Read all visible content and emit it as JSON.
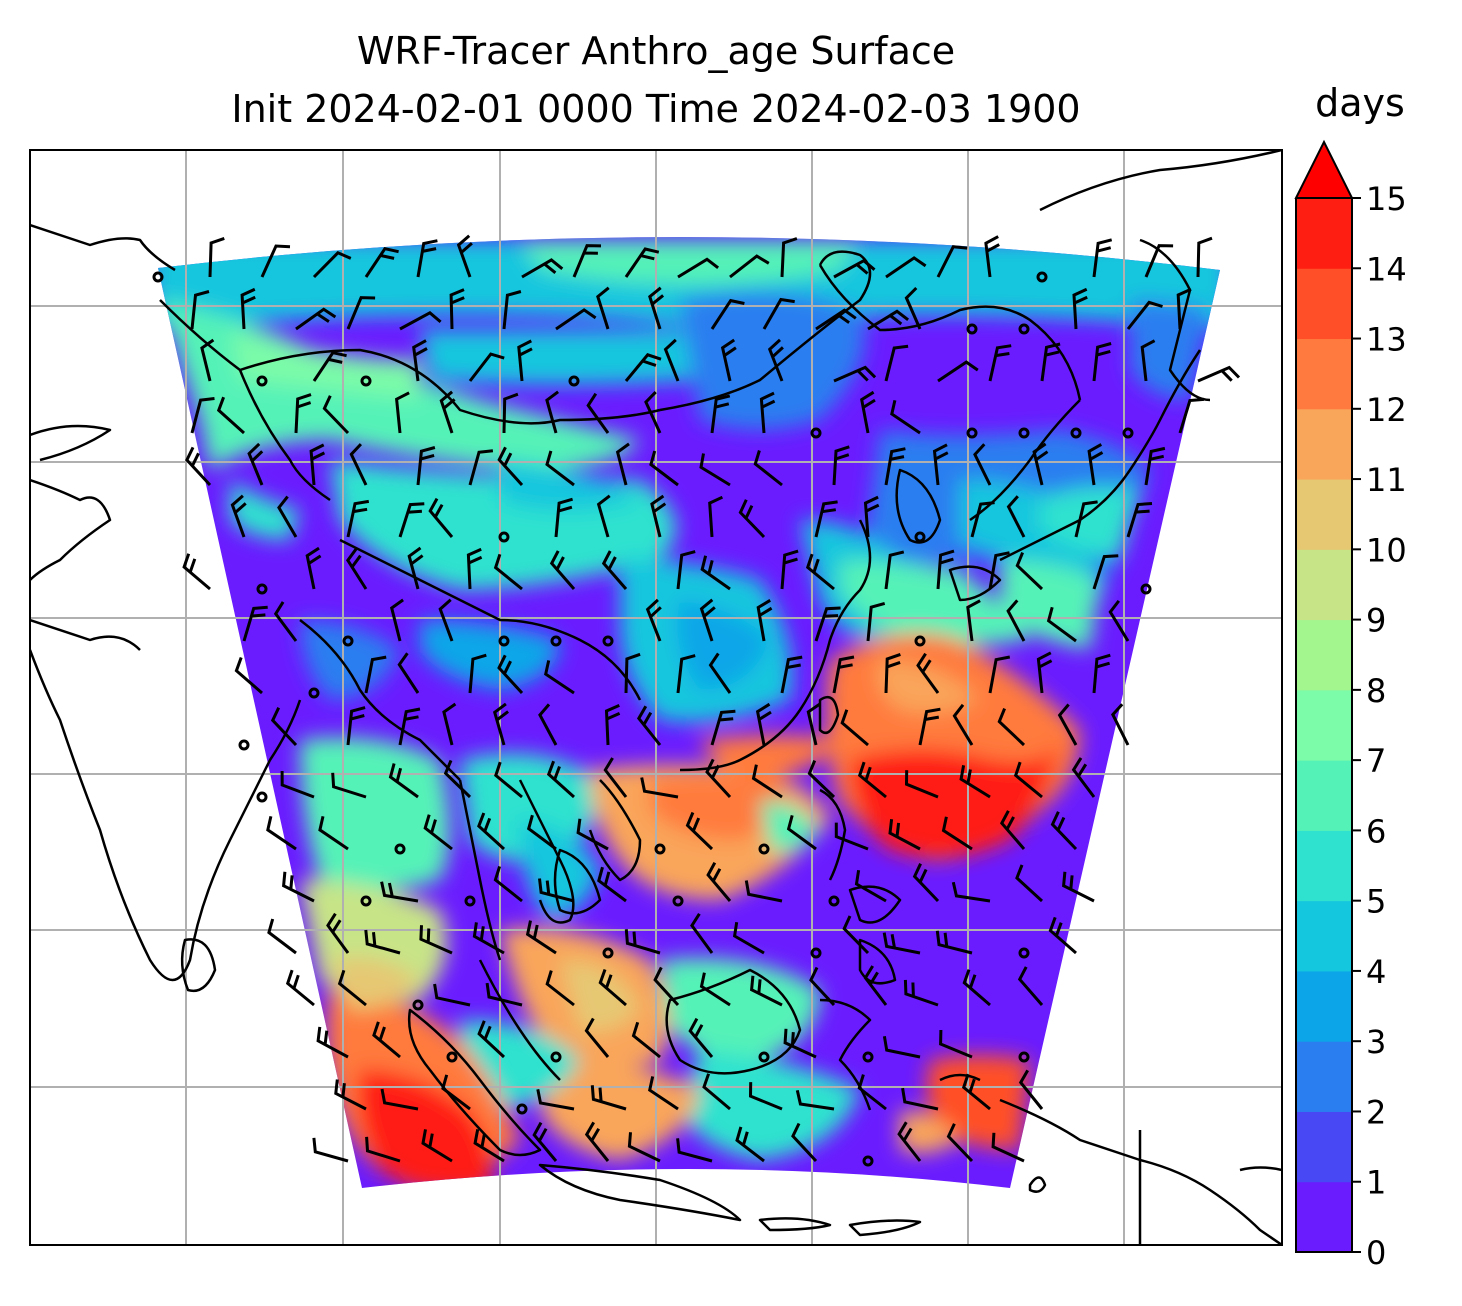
{
  "title_line1": "WRF-Tracer Anthro_age Surface",
  "title_line2": "Init 2024-02-01 0000 Time 2024-02-03 1900",
  "colorbar": {
    "unit_label": "days",
    "ticks": [
      "0",
      "1",
      "2",
      "3",
      "4",
      "5",
      "6",
      "7",
      "8",
      "9",
      "10",
      "11",
      "12",
      "13",
      "14",
      "15"
    ],
    "extend": "max",
    "levels": [
      {
        "from": 0,
        "to": 1,
        "color": "#6a1cff"
      },
      {
        "from": 1,
        "to": 2,
        "color": "#4848f5"
      },
      {
        "from": 2,
        "to": 3,
        "color": "#2a7ef0"
      },
      {
        "from": 3,
        "to": 4,
        "color": "#0ca6e8"
      },
      {
        "from": 4,
        "to": 5,
        "color": "#14c6de"
      },
      {
        "from": 5,
        "to": 6,
        "color": "#2fe2cf"
      },
      {
        "from": 6,
        "to": 7,
        "color": "#55f2b8"
      },
      {
        "from": 7,
        "to": 8,
        "color": "#7cfba8"
      },
      {
        "from": 8,
        "to": 9,
        "color": "#a3f58e"
      },
      {
        "from": 9,
        "to": 10,
        "color": "#c7e487"
      },
      {
        "from": 10,
        "to": 11,
        "color": "#e6c873"
      },
      {
        "from": 11,
        "to": 12,
        "color": "#f9a55a"
      },
      {
        "from": 12,
        "to": 13,
        "color": "#ff7a3e"
      },
      {
        "from": 13,
        "to": 14,
        "color": "#ff4f28"
      },
      {
        "from": 14,
        "to": 15,
        "color": "#ff1e12"
      }
    ],
    "over_color": "#ff0000"
  },
  "map": {
    "gridlines": true,
    "gridline_color": "#b0b0b0",
    "coastline_color": "#000000",
    "wind_barbs": true
  }
}
